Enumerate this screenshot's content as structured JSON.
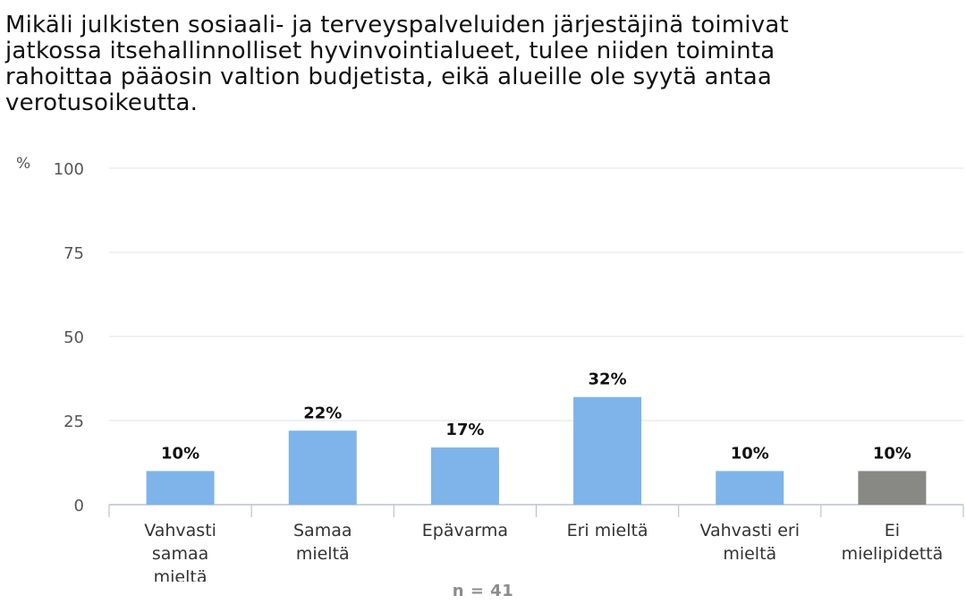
{
  "chart_data": {
    "type": "bar",
    "title_lines": [
      "Mikäli julkisten sosiaali- ja terveyspalveluiden järjestäjinä toimivat",
      "jatkossa itsehallinnolliset hyvinvointialueet, tulee niiden toiminta",
      "rahoittaa pääosin valtion budjetista, eikä alueille ole syytä antaa",
      "verotusoikeutta."
    ],
    "ylabel": "%",
    "ylim": [
      0,
      100
    ],
    "yticks": [
      0,
      25,
      50,
      75,
      100
    ],
    "grid": true,
    "categories": [
      [
        "Vahvasti",
        "samaa",
        "mieltä"
      ],
      [
        "Samaa",
        "mieltä"
      ],
      [
        "Epävarma"
      ],
      [
        "Eri mieltä"
      ],
      [
        "Vahvasti eri",
        "mieltä"
      ],
      [
        "Ei",
        "mielipidettä"
      ]
    ],
    "values": [
      10,
      22,
      17,
      32,
      10,
      10
    ],
    "value_labels": [
      "10%",
      "22%",
      "17%",
      "32%",
      "10%",
      "10%"
    ],
    "colors": [
      "#7eb4ea",
      "#7eb4ea",
      "#7eb4ea",
      "#7eb4ea",
      "#7eb4ea",
      "#888884"
    ],
    "footnote": "n = 41"
  }
}
